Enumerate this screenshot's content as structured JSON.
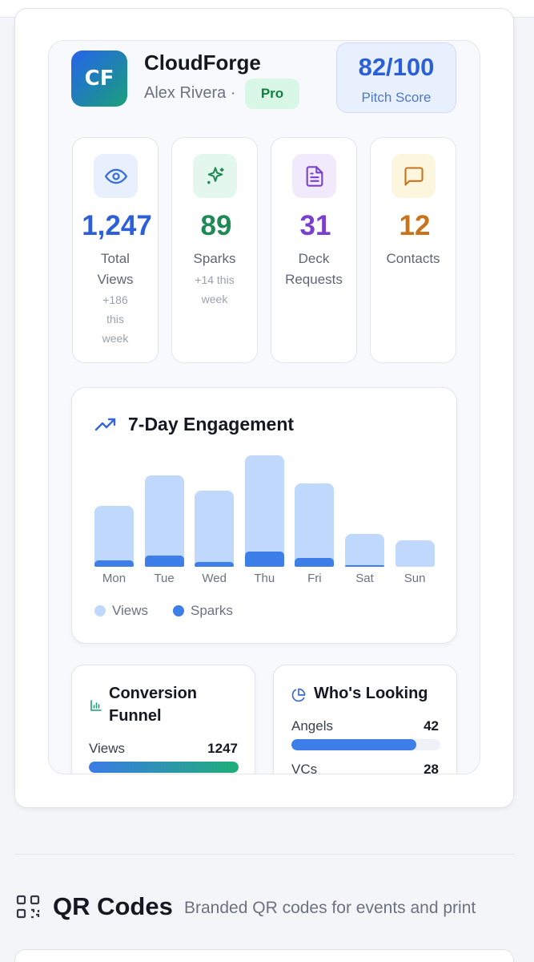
{
  "profile": {
    "logo_initials": "CF",
    "company": "CloudForge",
    "founder": "Alex Rivera ·",
    "plan_badge": "Pro",
    "score_value": "82/100",
    "score_label": "Pitch Score"
  },
  "stats": [
    {
      "value": "1,247",
      "label": "Total Views",
      "sub": "+186 this week",
      "icon": "eye-icon",
      "color": "#2d5fd8",
      "icon_bg": "#e8f0fd"
    },
    {
      "value": "89",
      "label": "Sparks",
      "sub": "+14 this week",
      "icon": "sparkles-icon",
      "color": "#1f8a55",
      "icon_bg": "#e3f7ec"
    },
    {
      "value": "31",
      "label": "Deck Requests",
      "sub": "",
      "icon": "document-icon",
      "color": "#7b3fd0",
      "icon_bg": "#f0eafc"
    },
    {
      "value": "12",
      "label": "Contacts",
      "sub": "",
      "icon": "message-icon",
      "color": "#c9731b",
      "icon_bg": "#fdf6df"
    }
  ],
  "engagement": {
    "title": "7-Day Engagement",
    "icon": "trending-up-icon",
    "legend_views": "Views",
    "legend_sparks": "Sparks",
    "colors": {
      "views": "#bfd8fb",
      "sparks": "#3e7ee8"
    }
  },
  "chart_data": {
    "type": "bar",
    "title": "7-Day Engagement",
    "categories": [
      "Mon",
      "Tue",
      "Wed",
      "Thu",
      "Fri",
      "Sat",
      "Sun"
    ],
    "series": [
      {
        "name": "Views",
        "values": [
          76,
          114,
          95,
          139,
          104,
          41,
          33
        ]
      },
      {
        "name": "Sparks",
        "values": [
          8,
          14,
          6,
          19,
          11,
          2,
          0
        ]
      }
    ],
    "legend": "bottom-left",
    "grid": false
  },
  "funnel": {
    "title": "Conversion Funnel",
    "icon": "bar-chart-icon",
    "rows": [
      {
        "label": "Views",
        "value": "1247",
        "fraction": 1.0
      }
    ]
  },
  "lookers": {
    "title": "Who's Looking",
    "icon": "pie-chart-icon",
    "rows": [
      {
        "label": "Angels",
        "value": "42",
        "fraction": 0.84
      },
      {
        "label": "VCs",
        "value": "28",
        "fraction": 0.56
      }
    ]
  },
  "qr_section": {
    "icon": "qr-code-icon",
    "title": "QR Codes",
    "subtitle": "Branded QR codes for events and print"
  }
}
